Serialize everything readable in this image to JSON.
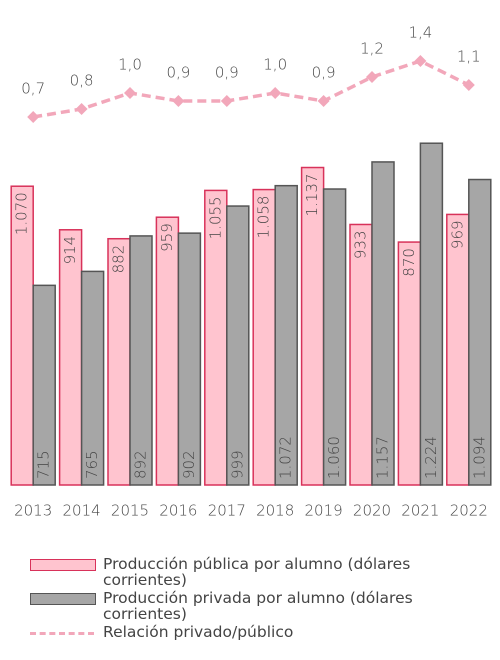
{
  "chart_data": {
    "type": "bar",
    "categories": [
      "2013",
      "2014",
      "2015",
      "2016",
      "2017",
      "2018",
      "2019",
      "2020",
      "2021",
      "2022"
    ],
    "ylim": [
      0,
      1300
    ],
    "y2lim": [
      0,
      2
    ],
    "series": [
      {
        "name": "Producción pública por alumno (dólares corrientes)",
        "color": "#ffc4cf",
        "stroke": "#d8325a",
        "values": [
          1070,
          914,
          882,
          959,
          1055,
          1058,
          1137,
          933,
          870,
          969
        ],
        "value_labels": [
          "1.070",
          "914",
          "882",
          "959",
          "1.055",
          "1.058",
          "1.137",
          "933",
          "870",
          "969"
        ]
      },
      {
        "name": "Producción privada por alumno (dólares corrientes)",
        "color": "#a6a6a6",
        "stroke": "#555555",
        "values": [
          715,
          765,
          892,
          902,
          999,
          1072,
          1060,
          1157,
          1224,
          1094
        ],
        "value_labels": [
          "715",
          "765",
          "892",
          "902",
          "999",
          "1.072",
          "1.060",
          "1.157",
          "1.224",
          "1.094"
        ]
      },
      {
        "name": "Relación privado/público",
        "type": "line",
        "axis": "y2",
        "color": "#f2a7ba",
        "values": [
          0.7,
          0.8,
          1.0,
          0.9,
          0.9,
          1.0,
          0.9,
          1.2,
          1.4,
          1.1
        ],
        "value_labels": [
          "0,7",
          "0,8",
          "1,0",
          "0,9",
          "0,9",
          "1,0",
          "0,9",
          "1,2",
          "1,4",
          "1,1"
        ]
      }
    ]
  }
}
